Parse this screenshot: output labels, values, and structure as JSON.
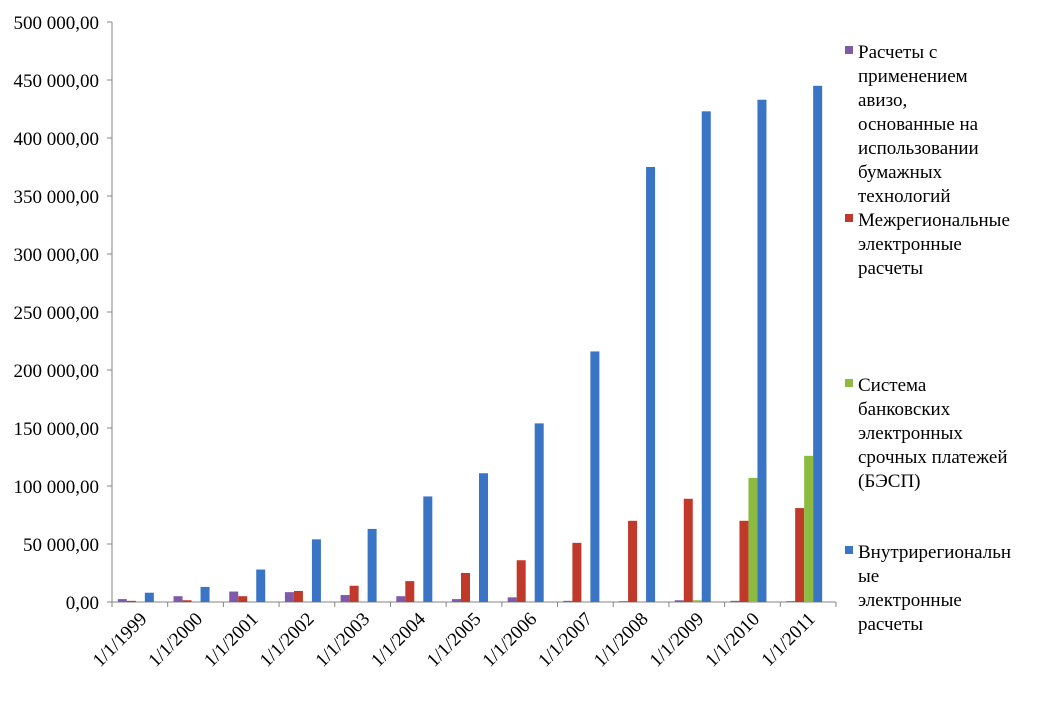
{
  "chart_data": {
    "type": "bar",
    "categories": [
      "1/1/1999",
      "1/1/2000",
      "1/1/2001",
      "1/1/2002",
      "1/1/2003",
      "1/1/2004",
      "1/1/2005",
      "1/1/2006",
      "1/1/2007",
      "1/1/2008",
      "1/1/2009",
      "1/1/2010",
      "1/1/2011"
    ],
    "series": [
      {
        "name": "Расчеты с применением авизо,\n основанные на использовании бумажных технологий",
        "color": "#7f5aa8",
        "values": [
          2500,
          5000,
          9000,
          8500,
          6000,
          5000,
          2500,
          4000,
          1000,
          700,
          1500,
          1000,
          700
        ]
      },
      {
        "name": "Межрегиональные электронные расчеты",
        "color": "#c0392b",
        "values": [
          1000,
          1500,
          5000,
          9500,
          14000,
          18000,
          25000,
          36000,
          51000,
          70000,
          89000,
          70000,
          81000
        ]
      },
      {
        "name": "Система банковских электронных срочных платежей (БЭСП)",
        "color": "#8dbb3f",
        "values": [
          0,
          0,
          0,
          0,
          0,
          0,
          0,
          0,
          0,
          0,
          1500,
          107000,
          126000
        ]
      },
      {
        "name": "Внутрирегиональные электронные расчеты",
        "color": "#3a74c4",
        "values": [
          8000,
          13000,
          28000,
          54000,
          63000,
          91000,
          111000,
          154000,
          216000,
          375000,
          423000,
          433000,
          445000
        ]
      }
    ],
    "yticks": [
      "0,00",
      "50 000,00",
      "100 000,00",
      "150 000,00",
      "200 000,00",
      "250 000,00",
      "300 000,00",
      "350 000,00",
      "400 000,00",
      "450 000,00",
      "500 000,00"
    ],
    "ylim": [
      0,
      500000
    ],
    "legend_position": "right",
    "grid": false
  },
  "legend": {
    "items": [
      {
        "label": "Расчеты с\nприменением\nавизо,\n основанные на\nиспользовании\nбумажных\nтехнологий",
        "color": "#7f5aa8"
      },
      {
        "label": "Межрегиональные\nэлектронные\nрасчеты",
        "color": "#c0392b"
      },
      {
        "label": "Система\nбанковских\nэлектронных\nсрочных платежей\n(БЭСП)",
        "color": "#8dbb3f"
      },
      {
        "label": "Внутрирегиональн\nые\nэлектронные\nрасчеты",
        "color": "#3a74c4"
      }
    ]
  }
}
